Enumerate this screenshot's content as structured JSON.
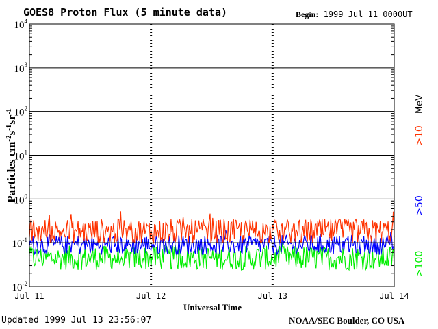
{
  "header": {
    "title": "GOES8 Proton Flux (5 minute data)",
    "begin_label": "Begin:",
    "begin_value": "1999 Jul 11 0000UT"
  },
  "footer": {
    "updated": "Updated 1999 Jul 13 23:56:07",
    "credit": "NOAA/SEC Boulder, CO USA"
  },
  "chart_data": {
    "type": "line",
    "title": "GOES8 Proton Flux (5 minute data)",
    "xlabel": "Universal Time",
    "ylabel": "Particles cm-2s-1sr-1",
    "yscale": "log",
    "ylim": [
      0.01,
      10000
    ],
    "y_ticks": [
      {
        "base": "10",
        "exp": "-2",
        "value": 0.01
      },
      {
        "base": "10",
        "exp": "-1",
        "value": 0.1
      },
      {
        "base": "10",
        "exp": "0",
        "value": 1
      },
      {
        "base": "10",
        "exp": "1",
        "value": 10
      },
      {
        "base": "10",
        "exp": "2",
        "value": 100
      },
      {
        "base": "10",
        "exp": "3",
        "value": 1000
      },
      {
        "base": "10",
        "exp": "4",
        "value": 10000
      }
    ],
    "x_ticks": [
      "Jul 11",
      "Jul 12",
      "Jul 13",
      "Jul 14"
    ],
    "grid": true,
    "unit_label": "MeV",
    "series": [
      {
        "name": ">10",
        "color": "#ff3300",
        "typical": 0.18,
        "min": 0.1,
        "max": 0.6
      },
      {
        "name": ">50",
        "color": "#0000ff",
        "typical": 0.09,
        "min": 0.05,
        "max": 0.2
      },
      {
        "name": ">100",
        "color": "#00ee00",
        "typical": 0.045,
        "min": 0.018,
        "max": 0.1
      }
    ]
  }
}
